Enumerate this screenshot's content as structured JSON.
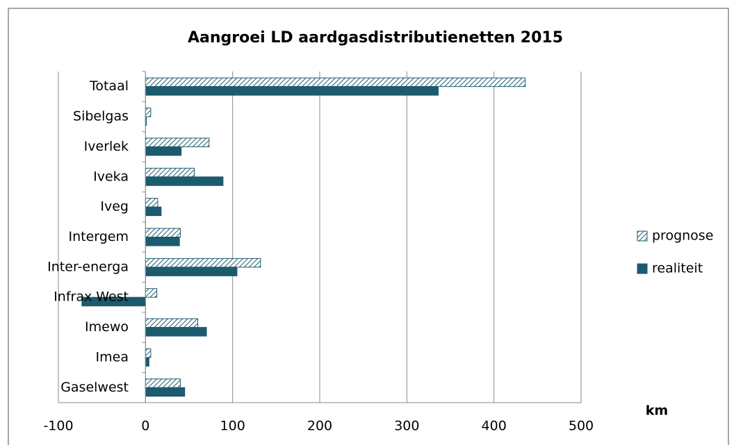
{
  "chart_data": {
    "type": "bar",
    "orientation": "horizontal",
    "title": "Aangroei LD aardgasdistributienetten 2015",
    "x_label": "km",
    "categories": [
      "Totaal",
      "Sibelgas",
      "Iverlek",
      "Iveka",
      "Iveg",
      "Intergem",
      "Inter-energa",
      "Infrax West",
      "Imewo",
      "Imea",
      "Gaselwest"
    ],
    "series": [
      {
        "name": "prognose",
        "color": "#1c5a6e",
        "pattern": "hatched",
        "values": [
          436,
          6,
          73,
          56,
          14,
          40,
          132,
          13,
          60,
          6,
          40
        ]
      },
      {
        "name": "realiteit",
        "color": "#1c5a6e",
        "pattern": "solid",
        "values": [
          336,
          1,
          41,
          89,
          18,
          39,
          105,
          -73,
          70,
          4,
          45
        ]
      }
    ],
    "xlim": [
      -100,
      500
    ],
    "xticks": [
      -100,
      0,
      100,
      200,
      300,
      400,
      500
    ],
    "grid": true,
    "legend": "right"
  }
}
